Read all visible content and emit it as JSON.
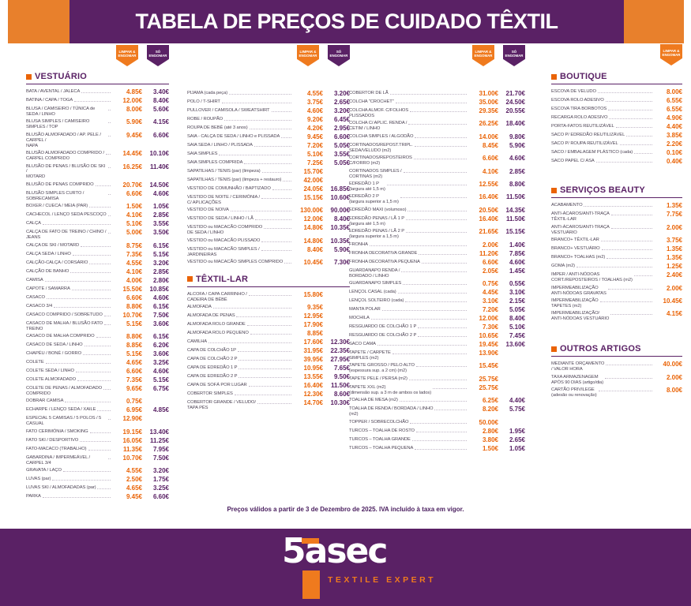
{
  "header": {
    "title": "TABELA DE PREÇOS DE CUIDADO TÊXTIL"
  },
  "badges": {
    "clean_line1": "LIMPAR &",
    "clean_line2": "ENGOMAR",
    "iron_line1": "SÓ",
    "iron_line2": "ENGOMAR"
  },
  "colors": {
    "purple": "#5a2165",
    "orange": "#e8802c",
    "price-orange": "#ea6306",
    "label": "#4e4556",
    "dots": "#c2b8c8",
    "note": "#4b2060"
  },
  "sections": {
    "vestuario_title": "VESTUÁRIO",
    "textil_title": "TÊXTIL-LAR",
    "boutique_title": "BOUTIQUE",
    "beauty_title": "SERVIÇOS BEAUTY",
    "outros_title": "OUTROS ARTIGOS"
  },
  "col1": {
    "items": [
      {
        "label": "BATA / AVENTAL / JALECA",
        "p1": "4.85€",
        "p2": "3.40€"
      },
      {
        "label": "BATINA / CAPA / TOGA",
        "p1": "12.00€",
        "p2": "8.40€"
      },
      {
        "label": "BLUSA / CAMISEIRO / TÚNICA de SEDA / LINHO",
        "p1": "8.00€",
        "p2": "5.60€"
      },
      {
        "label": "BLUSA SIMPLES / CAMISEIRO SIMPLES / TOP",
        "p1": "5.90€",
        "p2": "4.15€"
      },
      {
        "label": "BLUSÃO ALMOFADADO / AP. PELE / CARPEL /\nNAPA",
        "p1": "9.45€",
        "p2": "6.60€"
      },
      {
        "label": "BLUSÃO ALMOFADADO COMPRIDO /\nCARPEL COMPRIDO",
        "p1": "14.45€",
        "p2": "10.10€"
      },
      {
        "label": "BLUSÃO DE PENAS / BLUSÃO DE SKI /\nMOTARD",
        "p1": "16.25€",
        "p2": "11.40€"
      },
      {
        "label": "BLUSÃO DE PENAS COMPRIDO",
        "p1": "20.70€",
        "p2": "14.50€"
      },
      {
        "label": "BLUSÃO SIMPLES CURTO / SOBRECAMISA",
        "p1": "6.60€",
        "p2": "4.60€"
      },
      {
        "label": "BOXER / CUECA / MEIA (PAR)",
        "p1": "1.50€",
        "p2": "1.05€"
      },
      {
        "label": "CACHECOL / LENÇO SEDA PESCOÇO",
        "p1": "4.10€",
        "p2": "2.85€"
      },
      {
        "label": "CALÇA",
        "p1": "5.10€",
        "p2": "3.55€"
      },
      {
        "label": "CALÇA DE FATO DE TREINO / CHINO / JEANS",
        "p1": "5.00€",
        "p2": "3.50€"
      },
      {
        "label": "CALÇA DE SKI / MOTARD",
        "p1": "8.75€",
        "p2": "6.15€"
      },
      {
        "label": "CALÇA SEDA / LINHO",
        "p1": "7.35€",
        "p2": "5.15€"
      },
      {
        "label": "CALÇÃO-CALÇA / CORSÁRIO",
        "p1": "4.55€",
        "p2": "3.20€"
      },
      {
        "label": "CALÇÃO DE BANHO",
        "p1": "4.10€",
        "p2": "2.85€"
      },
      {
        "label": "CAMISA",
        "p1": "4.00€",
        "p2": "2.80€"
      },
      {
        "label": "CAPOTE / SAMARRA",
        "p1": "15.50€",
        "p2": "10.85€"
      },
      {
        "label": "CASACO",
        "p1": "6.60€",
        "p2": "4.60€"
      },
      {
        "label": "CASACO 3/4",
        "p1": "8.80€",
        "p2": "6.15€"
      },
      {
        "label": "CASACO COMPRIDO / SOBRETUDO",
        "p1": "10.70€",
        "p2": "7.50€"
      },
      {
        "label": "CASACO DE MALHA / BLUSÃO FATO\nTREINO",
        "p1": "5.15€",
        "p2": "3.60€"
      },
      {
        "label": "CASACO DE MALHA COMPRIDO",
        "p1": "8.80€",
        "p2": "6.15€"
      },
      {
        "label": "CASACO DE SEDA / LINHO",
        "p1": "8.85€",
        "p2": "6.20€"
      },
      {
        "label": "CHAPÉU / BONÉ / GORRO",
        "p1": "5.15€",
        "p2": "3.60€"
      },
      {
        "label": "COLETE",
        "p1": "4.65€",
        "p2": "3.25€"
      },
      {
        "label": "COLETE SEDA / LINHO",
        "p1": "6.60€",
        "p2": "4.60€"
      },
      {
        "label": "COLETE ALMOFADADO",
        "p1": "7.35€",
        "p2": "5.15€"
      },
      {
        "label": "COLETE DE PENAS / ALMOFADADO\nCOMPRIDO",
        "p1": "9.65€",
        "p2": "6.75€"
      },
      {
        "label": "DOBRAR CAMISA",
        "p1": "0.75€",
        "p2": ""
      },
      {
        "label": "ECHARPE / LENÇO SEDA / XAILE",
        "p1": "6.95€",
        "p2": "4.85€"
      },
      {
        "label": "ESPECIAL 5 CAMISAS / 5 POLOS / 5 CASUAL",
        "p1": "12.90€",
        "p2": ""
      },
      {
        "label": "FATO CERIMÓNIA / SMOKING",
        "p1": "19.15€",
        "p2": "13.40€"
      },
      {
        "label": "FATO SKI / DESPORTIVO",
        "p1": "16.05€",
        "p2": "11.25€"
      },
      {
        "label": "FATO-MACACO (TRABALHO)",
        "p1": "11.35€",
        "p2": "7.95€"
      },
      {
        "label": "GABARDINA / IMPERMEÁVEL / CARPEL 3/4",
        "p1": "10.70€",
        "p2": "7.50€"
      },
      {
        "label": "GRAVATA / LAÇO",
        "p1": "4.55€",
        "p2": "3.20€"
      },
      {
        "label": "LUVAS (par)",
        "p1": "2.50€",
        "p2": "1.75€"
      },
      {
        "label": "LUVAS SKI / ALMOFADADAS (par)",
        "p1": "4.65€",
        "p2": "3.25€"
      },
      {
        "label": "PARKA",
        "p1": "9.45€",
        "p2": "6.60€"
      }
    ]
  },
  "col2": {
    "items_vestuario": [
      {
        "label": "PIJAMA (cada peça)",
        "p1": "4.55€",
        "p2": "3.20€"
      },
      {
        "label": "POLO / T-SHIRT",
        "p1": "3.75€",
        "p2": "2.65€"
      },
      {
        "label": "PULLOVER / CAMISOLA / SWEATSHIRT",
        "p1": "4.60€",
        "p2": "3.20€"
      },
      {
        "label": "ROBE / ROUPÃO",
        "p1": "9.20€",
        "p2": "6.45€"
      },
      {
        "label": "ROUPA DE BEBÉ (até 3 anos)",
        "p1": "4.20€",
        "p2": "2.95€"
      },
      {
        "label": "SAIA - CALÇA DE SEDA / LINHO e PLISSADA",
        "p1": "9.45€",
        "p2": "6.60€"
      },
      {
        "label": "SAIA SEDA / LINHO / PLISSADA",
        "p1": "7.20€",
        "p2": "5.05€"
      },
      {
        "label": "SAIA SIMPLES",
        "p1": "5.10€",
        "p2": "3.55€"
      },
      {
        "label": "SAIA SIMPLES COMPRIDA",
        "p1": "7.25€",
        "p2": "5.05€"
      },
      {
        "label": "SAPATILHAS / TENIS (par) (limpeza)",
        "p1": "15.70€",
        "p2": ""
      },
      {
        "label": "SAPATILHAS / TENIS (par) (limpeza + restauro)",
        "p1": "42.00€",
        "p2": ""
      },
      {
        "label": "VESTIDO DE COMUNHÃO / BAPTIZADO",
        "p1": "24.05€",
        "p2": "16.85€"
      },
      {
        "label": "VESTIDO DE NOITE / CERIMÓNIA /\nC/ APLICAÇÕES",
        "p1": "15.15€",
        "p2": "10.60€"
      },
      {
        "label": "VESTIDO DE NOIVA",
        "p1": "130.00€",
        "p2": "90.00€"
      },
      {
        "label": "VESTIDO DE SEDA / LINHO / LÃ",
        "p1": "12.00€",
        "p2": "8.40€"
      },
      {
        "label": "VESTIDO ou MACACÃO COMPRIDO\nDE SEDA / LINHO",
        "p1": "14.80€",
        "p2": "10.35€"
      },
      {
        "label": "VESTIDO ou MACACÃO PLISSADO",
        "p1": "14.80€",
        "p2": "10.35€"
      },
      {
        "label": "VESTIDO ou MACACÃO SIMPLES /\nJARDINEIRAS",
        "p1": "8.40€",
        "p2": "5.90€"
      },
      {
        "label": "VESTIDO ou MACACÃO SIMPLES COMPRIDO",
        "p1": "10.45€",
        "p2": "7.30€"
      }
    ],
    "items_textil": [
      {
        "label": "ALCOFA / CAPA CARRINHO /\nCADEIRA DE BÉBÉ",
        "p1": "15.80€",
        "p2": ""
      },
      {
        "label": "ALMOFADA",
        "p1": "9.35€",
        "p2": ""
      },
      {
        "label": "ALMOFADA DE PENAS",
        "p1": "12.95€",
        "p2": ""
      },
      {
        "label": "ALMOFADA ROLO GRANDE",
        "p1": "17.90€",
        "p2": ""
      },
      {
        "label": "ALMOFADA ROLO PEQUENO",
        "p1": "8.85€",
        "p2": ""
      },
      {
        "label": "CAMILHA",
        "p1": "17.60€",
        "p2": "12.30€"
      },
      {
        "label": "CAPA DE COLCHÃO 1P",
        "p1": "31.95€",
        "p2": "22.35€"
      },
      {
        "label": "CAPA DE COLCHÃO 2 P",
        "p1": "39.95€",
        "p2": "27.95€"
      },
      {
        "label": "CAPA DE EDREDÃO 1 P",
        "p1": "10.95€",
        "p2": "7.65€"
      },
      {
        "label": "CAPA DE EDREDÃO 2 P",
        "p1": "13.55€",
        "p2": "9.50€"
      },
      {
        "label": "CAPA DE SOFÁ POR LUGAR",
        "p1": "16.40€",
        "p2": "11.50€"
      },
      {
        "label": "COBERTOR SIMPLES",
        "p1": "12.30€",
        "p2": "8.60€"
      },
      {
        "label": "COBERTOR GRANDE / VELUDO/\nTAPA PÉS",
        "p1": "14.70€",
        "p2": "10.30€"
      }
    ]
  },
  "col3": {
    "items": [
      {
        "label": "COBERTOR DE LÃ",
        "p1": "31.00€",
        "p2": "21.70€"
      },
      {
        "label": "COLCHA \"CROCHET\"",
        "p1": "35.00€",
        "p2": "24.50€"
      },
      {
        "label": "COLCHA ALMOF. C/FOLHOS\nPLISSADOS",
        "p1": "29.35€",
        "p2": "20.55€"
      },
      {
        "label": "COLCHA C/ APLIC. RENDA /\nCETIM / LINHO",
        "p1": "26.25€",
        "p2": "18.40€"
      },
      {
        "label": "COLCHA SIMPLES / ALGODÃO",
        "p1": "14.00€",
        "p2": "9.80€"
      },
      {
        "label": "CORTINADOS/REPOST.TRIPL.\nSEDA/VELUDO (m2)",
        "p1": "8.45€",
        "p2": "5.90€"
      },
      {
        "label": "CORTINADOS/REPOSTEIROS\nC/FORRO (m2)",
        "p1": "6.60€",
        "p2": "4.60€"
      },
      {
        "label": "CORTINADOS SIMPLES /\nCORTINAS (m2)",
        "p1": "4.10€",
        "p2": "2.85€"
      },
      {
        "label": "EDREDÃO 1 P\n(largura até 1,5 m)",
        "p1": "12.55€",
        "p2": "8.80€"
      },
      {
        "label": "EDREDÃO 2 P\n(largura superior a 1,5 m)",
        "p1": "16.40€",
        "p2": "11.50€"
      },
      {
        "label": "EDREDÃO MAXI (volumoso)",
        "p1": "20.50€",
        "p2": "14.35€"
      },
      {
        "label": "EDREDÃO PENAS / LÃ 1 P\n(largura até 1,5 m)",
        "p1": "16.40€",
        "p2": "11.50€"
      },
      {
        "label": "EDREDÃO PENAS / LÃ 2 P\n(largura superior a 1,5 m)",
        "p1": "21.65€",
        "p2": "15.15€"
      },
      {
        "label": "FRONHA",
        "p1": "2.00€",
        "p2": "1.40€"
      },
      {
        "label": "FRONHA DECORATIVA GRANDE",
        "p1": "11.20€",
        "p2": "7.85€"
      },
      {
        "label": "FRONHA DECORATIVA PEQUENA",
        "p1": "6.60€",
        "p2": "4.60€"
      },
      {
        "label": "GUARDANAPO RENDA /\nBORDADO / LINHO",
        "p1": "2.05€",
        "p2": "1.45€"
      },
      {
        "label": "GUARDANAPO SIMPLES",
        "p1": "0.75€",
        "p2": "0.55€"
      },
      {
        "label": "LENÇOL CASAL (cada)",
        "p1": "4.45€",
        "p2": "3.10€"
      },
      {
        "label": "LENÇOL SOLTEIRO (cada)",
        "p1": "3.10€",
        "p2": "2.15€"
      },
      {
        "label": "MANTA POLAR",
        "p1": "7.20€",
        "p2": "5.05€"
      },
      {
        "label": "MOCHILA",
        "p1": "12.00€",
        "p2": "8.40€"
      },
      {
        "label": "RESGUARDO DE COLCHÃO 1 P",
        "p1": "7.30€",
        "p2": "5.10€"
      },
      {
        "label": "RESGUARDO DE COLCHÃO 2 P",
        "p1": "10.65€",
        "p2": "7.45€"
      },
      {
        "label": "SACO CAMA",
        "p1": "19.45€",
        "p2": "13.60€"
      },
      {
        "label": "TAPETE / CARPETE\nSIMPLES (m2)",
        "p1": "13.90€",
        "p2": ""
      },
      {
        "label": "TAPETE GROSSO / PELO ALTO\n(espessura sup. a 2 cm) (m2)",
        "p1": "15.45€",
        "p2": ""
      },
      {
        "label": "TAPETE PELE / PERSA (m2)",
        "p1": "25.75€",
        "p2": ""
      },
      {
        "label": "TAPETE XXL (m2)\n(dimensão sup. a 3 m de ambos os lados)",
        "p1": "25.75€",
        "p2": ""
      },
      {
        "label": "TOALHA DE MESA (m2)",
        "p1": "6.25€",
        "p2": "4.40€"
      },
      {
        "label": "TOALHA DE RENDA / BORDADA / LINHO\n(m2)",
        "p1": "8.20€",
        "p2": "5.75€"
      },
      {
        "label": "TOPPER / SOBRECOLCHÃO",
        "p1": "50.00€",
        "p2": ""
      },
      {
        "label": "TURCOS – TOALHA DE ROSTO",
        "p1": "2.80€",
        "p2": "1.95€"
      },
      {
        "label": "TURCOS – TOALHA GRANDE",
        "p1": "3.80€",
        "p2": "2.65€"
      },
      {
        "label": "TURCOS – TOALHA PEQUENA",
        "p1": "1.50€",
        "p2": "1.05€"
      }
    ]
  },
  "col4": {
    "boutique": [
      {
        "label": "ESCOVA DE VELUDO",
        "p1": "8.00€"
      },
      {
        "label": "ESCOVA ROLO ADESIVO",
        "p1": "6.55€"
      },
      {
        "label": "ESCOVA TIRA BORBOTOS",
        "p1": "6.55€"
      },
      {
        "label": "RECARGA ROLO ADESIVO",
        "p1": "4.90€"
      },
      {
        "label": "PORTA-FATOS REUTILIZÁVEL",
        "p1": "4.40€"
      },
      {
        "label": "SACO P/ EDREDÃO REUTILIZÁVEL",
        "p1": "3.85€"
      },
      {
        "label": "SACO P/ ROUPA REUTILIZÁVEL",
        "p1": "2.20€"
      },
      {
        "label": "SACO / EMBALAGEM PLÁSTICO (cada)",
        "p1": "0.10€"
      },
      {
        "label": "SACO PAPEL C/ ASA",
        "p1": "0.40€"
      }
    ],
    "beauty": [
      {
        "label": "ACABAMENTO",
        "p1": "1.35€"
      },
      {
        "label": "ANTI-ÁCAROS/ANTI-TRAÇA\nTÊXTIL-LAR",
        "p1": "7.75€"
      },
      {
        "label": "ANTI-ÁCAROS/ANTI-TRAÇA\nVESTUÁRIO",
        "p1": "2.00€"
      },
      {
        "label": "BRANCO+ TÊXTIL-LAR",
        "p1": "3.75€"
      },
      {
        "label": "BRANCO+ VESTUÁRIO",
        "p1": "1.35€"
      },
      {
        "label": "BRANCO+ TOALHAS (m2)",
        "p1": "1.35€"
      },
      {
        "label": "GOMA (m2)",
        "p1": "1.25€"
      },
      {
        "label": "IMPER / ANTI-NÓDOAS\nCORT./REPOSTEIROS / TOALHAS (m2)",
        "p1": "2.40€"
      },
      {
        "label": "IMPERMEABILIZAÇÃO\nANTI-NÓDOAS GRAVATAS",
        "p1": "2.00€"
      },
      {
        "label": "IMPERMEABILIZAÇÃO\nTAPETES (m2)",
        "p1": "10.45€"
      },
      {
        "label": "IMPERMEABILIZAÇÃO/\nANTI-NÓDOAS VESTUÁRIO",
        "p1": "4.15€"
      }
    ],
    "outros": [
      {
        "label": "MEDIANTE ORÇAMENTO\n/ VALOR HORA",
        "p1": "40.00€"
      },
      {
        "label": "TAXA ARMAZENAGEM\nAPÓS 90 DIAS (artigo/dia)",
        "p1": "2.00€"
      },
      {
        "label": "CARTÃO PRIVILEGE\n(adesão ou renovação)",
        "p1": "8.00€"
      }
    ]
  },
  "footer": {
    "note": "Preços válidos a partir de 3 de Dezembro de 2025. IVA incluído à taxa em vigor."
  },
  "brand": {
    "five": "5",
    "a": "a",
    "sec": "sec",
    "name": "5àsec",
    "tagline": "TEXTILE EXPERT"
  }
}
